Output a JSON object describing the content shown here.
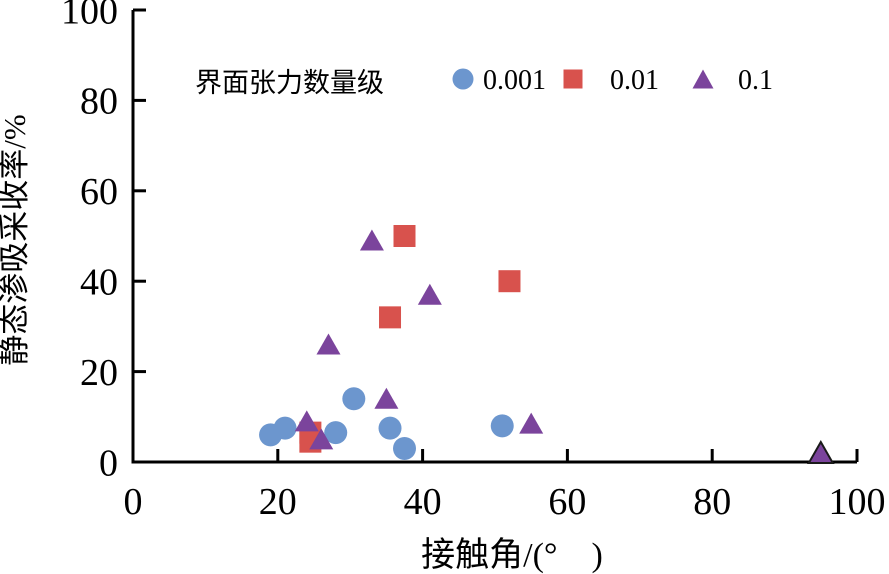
{
  "chart_data": {
    "type": "scatter",
    "title": "",
    "xlabel": "接触角/(°　)",
    "ylabel": "静态渗吸采收率/%",
    "xlim": [
      0,
      100
    ],
    "ylim": [
      0,
      100
    ],
    "xticks": [
      0,
      20,
      40,
      60,
      80,
      100
    ],
    "yticks": [
      0,
      20,
      40,
      60,
      80,
      100
    ],
    "grid": false,
    "legend_title": "界面张力数量级",
    "legend_position": "top-inside",
    "series": [
      {
        "name": "0.001",
        "marker": "circle",
        "color": "#6C96CE",
        "points": [
          [
            19,
            6
          ],
          [
            21,
            7.5
          ],
          [
            28,
            6.5
          ],
          [
            30.5,
            14
          ],
          [
            35.5,
            7.5
          ],
          [
            37.5,
            3
          ],
          [
            51,
            8
          ]
        ]
      },
      {
        "name": "0.01",
        "marker": "square",
        "color": "#D8524D",
        "points": [
          [
            24.5,
            6.5
          ],
          [
            24.5,
            4.5
          ],
          [
            35.5,
            32
          ],
          [
            37.5,
            50
          ],
          [
            52,
            40
          ]
        ]
      },
      {
        "name": "0.1",
        "marker": "triangle",
        "color": "#7B449C",
        "points": [
          [
            24,
            9
          ],
          [
            26,
            5
          ],
          [
            27,
            26
          ],
          [
            33,
            49
          ],
          [
            35,
            14
          ],
          [
            41,
            37
          ],
          [
            55,
            8.5
          ],
          [
            95,
            2,
            "outlined"
          ]
        ]
      }
    ]
  },
  "colors": {
    "axis": "#000000",
    "background": "#FFFFFF",
    "outline": "#1A1A1A"
  }
}
